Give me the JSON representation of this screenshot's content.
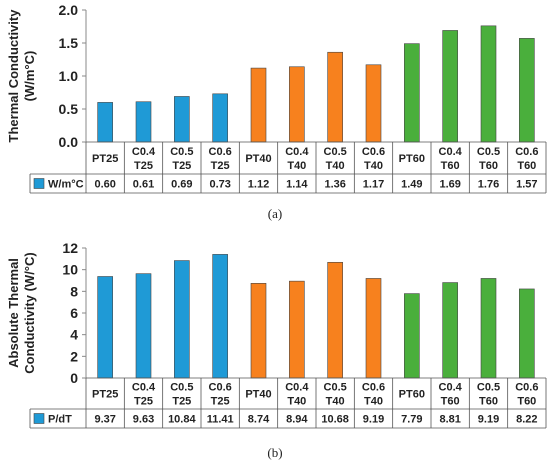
{
  "chart_data": [
    {
      "type": "bar",
      "ylabel_lines": [
        "Thermal Conductivity",
        "(W/m°C)"
      ],
      "ylim": [
        0,
        2.0
      ],
      "yticks": [
        "0.0",
        "0.5",
        "1.0",
        "1.5",
        "2.0"
      ],
      "ytick_values": [
        0,
        0.5,
        1.0,
        1.5,
        2.0
      ],
      "categories": [
        [
          "PT25"
        ],
        [
          "C0.4",
          "T25"
        ],
        [
          "C0.5",
          "T25"
        ],
        [
          "C0.6",
          "T25"
        ],
        [
          "PT40"
        ],
        [
          "C0.4",
          "T40"
        ],
        [
          "C0.5",
          "T40"
        ],
        [
          "C0.6",
          "T40"
        ],
        [
          "PT60"
        ],
        [
          "C0.4",
          "T60"
        ],
        [
          "C0.5",
          "T60"
        ],
        [
          "C0.6",
          "T60"
        ]
      ],
      "values": [
        0.6,
        0.61,
        0.69,
        0.73,
        1.12,
        1.14,
        1.36,
        1.17,
        1.49,
        1.69,
        1.76,
        1.57
      ],
      "value_labels": [
        "0.60",
        "0.61",
        "0.69",
        "0.73",
        "1.12",
        "1.14",
        "1.36",
        "1.17",
        "1.49",
        "1.69",
        "1.76",
        "1.57"
      ],
      "series_name": "W/m°C",
      "bar_colors": [
        "#1f9ad6",
        "#1f9ad6",
        "#1f9ad6",
        "#1f9ad6",
        "#f7811e",
        "#f7811e",
        "#f7811e",
        "#f7811e",
        "#4aaf3c",
        "#4aaf3c",
        "#4aaf3c",
        "#4aaf3c"
      ],
      "legend_color": "#1f9ad6",
      "grid": false,
      "caption": "(a)"
    },
    {
      "type": "bar",
      "ylabel_lines": [
        "Absolute Thermal",
        "Conductivity (W/°C)"
      ],
      "ylim": [
        0,
        12
      ],
      "yticks": [
        "0",
        "2",
        "4",
        "6",
        "8",
        "10",
        "12"
      ],
      "ytick_values": [
        0,
        2,
        4,
        6,
        8,
        10,
        12
      ],
      "categories": [
        [
          "PT25"
        ],
        [
          "C0.4",
          "T25"
        ],
        [
          "C0.5",
          "T25"
        ],
        [
          "C0.6",
          "T25"
        ],
        [
          "PT40"
        ],
        [
          "C0.4",
          "T40"
        ],
        [
          "C0.5",
          "T40"
        ],
        [
          "C0.6",
          "T40"
        ],
        [
          "PT60"
        ],
        [
          "C0.4",
          "T60"
        ],
        [
          "C0.5",
          "T60"
        ],
        [
          "C0.6",
          "T60"
        ]
      ],
      "values": [
        9.37,
        9.63,
        10.84,
        11.41,
        8.74,
        8.94,
        10.68,
        9.19,
        7.79,
        8.81,
        9.19,
        8.22
      ],
      "value_labels": [
        "9.37",
        "9.63",
        "10.84",
        "11.41",
        "8.74",
        "8.94",
        "10.68",
        "9.19",
        "7.79",
        "8.81",
        "9.19",
        "8.22"
      ],
      "series_name": "P/dT",
      "bar_colors": [
        "#1f9ad6",
        "#1f9ad6",
        "#1f9ad6",
        "#1f9ad6",
        "#f7811e",
        "#f7811e",
        "#f7811e",
        "#f7811e",
        "#4aaf3c",
        "#4aaf3c",
        "#4aaf3c",
        "#4aaf3c"
      ],
      "legend_color": "#1f9ad6",
      "grid": false,
      "caption": "(b)"
    }
  ]
}
